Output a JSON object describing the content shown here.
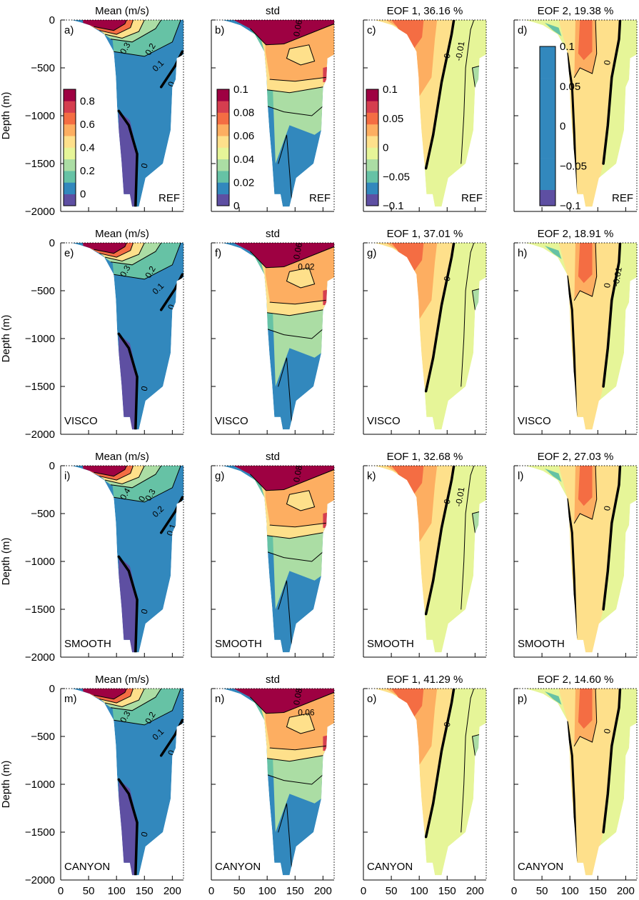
{
  "figure": {
    "y_axis_label": "Depth (m)",
    "y_ticks": [
      0,
      -500,
      -1000,
      -1500,
      -2000
    ],
    "x_ticks": [
      0,
      50,
      100,
      150,
      200
    ],
    "ylim": [
      -2000,
      0
    ],
    "xlim": [
      0,
      220
    ]
  },
  "colors": {
    "palette": [
      "#5e4fa2",
      "#3288bd",
      "#66c2a5",
      "#abdda4",
      "#e6f598",
      "#fee08b",
      "#fdae61",
      "#f46d43",
      "#d53e4f",
      "#9e0142"
    ],
    "contour_line": "#000000",
    "axis": "#000000"
  },
  "chart_data": {
    "type": "contour-panel-grid",
    "rows": [
      "REF",
      "VISCO",
      "SMOOTH",
      "CANYON"
    ],
    "columns": [
      "Mean (m/s)",
      "std",
      "EOF 1",
      "EOF 2"
    ],
    "colorbars": [
      {
        "panel": "a",
        "ticks": [
          "0",
          "0.2",
          "0.4",
          "0.6",
          "0.8"
        ],
        "range": [
          -0.1,
          0.9
        ]
      },
      {
        "panel": "b",
        "ticks": [
          "0",
          "0.02",
          "0.04",
          "0.06",
          "0.08",
          "0.1"
        ],
        "range": [
          0,
          0.1
        ]
      },
      {
        "panel": "c",
        "ticks": [
          "−0.1",
          "−0.05",
          "0",
          "0.05",
          "0.1"
        ],
        "range": [
          -0.1,
          0.1
        ]
      },
      {
        "panel": "d",
        "ticks": [
          "−0.1",
          "−0.05",
          "0",
          "0.05",
          "0.1"
        ],
        "range": [
          -0.1,
          0.1
        ]
      }
    ],
    "panels": [
      {
        "letter": "a)",
        "title": "Mean (m/s)",
        "label": "REF",
        "kind": "mean",
        "contour_labels": [
          "0.3",
          "0.2",
          "0.1",
          "0",
          "0"
        ]
      },
      {
        "letter": "b)",
        "title": "std",
        "label": "REF",
        "kind": "std",
        "contour_labels": [
          "0.06"
        ]
      },
      {
        "letter": "c)",
        "title": "EOF 1, 36.16 %",
        "label": "REF",
        "kind": "eof1",
        "contour_labels": [
          "0",
          "-0.01"
        ]
      },
      {
        "letter": "d)",
        "title": "EOF 2, 19.38 %",
        "label": "REF",
        "kind": "eof2",
        "contour_labels": [
          "0"
        ]
      },
      {
        "letter": "e)",
        "title": "Mean (m/s)",
        "label": "VISCO",
        "kind": "mean",
        "contour_labels": [
          "0.3",
          "0.2",
          "0.1",
          "0",
          "0"
        ]
      },
      {
        "letter": "f)",
        "title": "std",
        "label": "VISCO",
        "kind": "std",
        "contour_labels": [
          "0.06",
          "0.02"
        ]
      },
      {
        "letter": "g)",
        "title": "EOF 1, 37.01 %",
        "label": "VISCO",
        "kind": "eof1",
        "contour_labels": [
          "0"
        ]
      },
      {
        "letter": "h)",
        "title": "EOF 2, 18.91 %",
        "label": "VISCO",
        "kind": "eof2",
        "contour_labels": [
          "0",
          "-0.01"
        ]
      },
      {
        "letter": "i)",
        "title": "Mean (m/s)",
        "label": "SMOOTH",
        "kind": "mean",
        "contour_labels": [
          "0.4",
          "0.3",
          "0.2",
          "0.1",
          "0",
          "0"
        ]
      },
      {
        "letter": "g)",
        "title": "std",
        "label": "SMOOTH",
        "kind": "std",
        "contour_labels": [
          "0.08"
        ]
      },
      {
        "letter": "k)",
        "title": "EOF 1, 32.68 %",
        "label": "SMOOTH",
        "kind": "eof1",
        "contour_labels": [
          "0",
          "-0.01"
        ]
      },
      {
        "letter": "l)",
        "title": "EOF 2, 27.03 %",
        "label": "SMOOTH",
        "kind": "eof2",
        "contour_labels": [
          "0"
        ]
      },
      {
        "letter": "m)",
        "title": "Mean (m/s)",
        "label": "CANYON",
        "kind": "mean",
        "contour_labels": [
          "0.3",
          "0.2",
          "0.1",
          "0",
          "0"
        ]
      },
      {
        "letter": "n)",
        "title": "std",
        "label": "CANYON",
        "kind": "std",
        "contour_labels": [
          "0.08",
          "0.06"
        ]
      },
      {
        "letter": "o)",
        "title": "EOF 1, 41.29 %",
        "label": "CANYON",
        "kind": "eof1",
        "contour_labels": [
          "0"
        ]
      },
      {
        "letter": "p)",
        "title": "EOF 2, 14.60 %",
        "label": "CANYON",
        "kind": "eof2",
        "contour_labels": [
          "0"
        ]
      }
    ]
  }
}
